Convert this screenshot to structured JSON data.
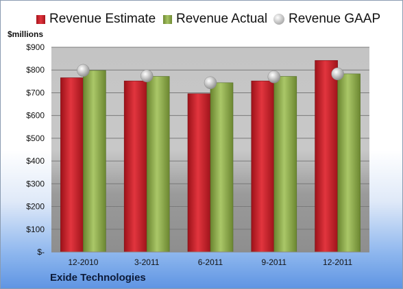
{
  "unit_label": "$millions",
  "company": "Exide Technologies",
  "colors": {
    "estimate": "#c8202a",
    "actual": "#8fae4c",
    "gaap": "#b0b0b0",
    "plot_background": "#c8c8c8"
  },
  "chart_data": {
    "type": "bar",
    "categories": [
      "12-2010",
      "3-2011",
      "6-2011",
      "9-2011",
      "12-2011"
    ],
    "series": [
      {
        "name": "Revenue Estimate",
        "values": [
          766,
          752,
          696,
          752,
          842
        ]
      },
      {
        "name": "Revenue Actual",
        "values": [
          798,
          772,
          744,
          772,
          783
        ]
      },
      {
        "name": "Revenue GAAP",
        "values": [
          798,
          774,
          744,
          770,
          783
        ],
        "marker": "sphere"
      }
    ],
    "ylim": [
      0,
      900
    ],
    "yticks": [
      0,
      100,
      200,
      300,
      400,
      500,
      600,
      700,
      800,
      900
    ],
    "ytick_labels": [
      "$-",
      "$100",
      "$200",
      "$300",
      "$400",
      "$500",
      "$600",
      "$700",
      "$800",
      "$900"
    ],
    "grid": true,
    "legend": "top"
  }
}
